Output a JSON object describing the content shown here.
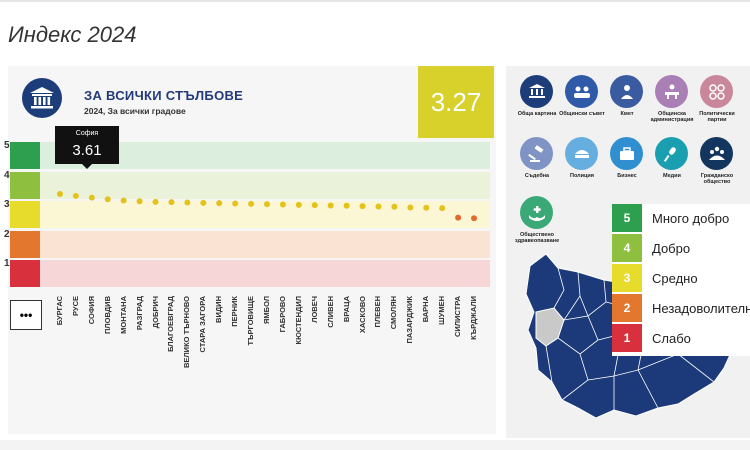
{
  "page": {
    "title": "Индекс 2024"
  },
  "pillar": {
    "title": "ЗА ВСИЧКИ СТЪЛБОВЕ",
    "subtitle": "2024, За всички градове",
    "score": "3.27",
    "icon": "institution-building-icon"
  },
  "tooltip": {
    "city": "София",
    "value": "3.61"
  },
  "more_button": {
    "label": "•••",
    "icon": "more-dots-icon"
  },
  "chart_data": {
    "type": "scatter",
    "title": "ЗА ВСИЧКИ СТЪЛБОВЕ",
    "subtitle": "2024, За всички градове",
    "categories": [
      "БУРГАС",
      "РУСЕ",
      "СОФИЯ",
      "ПЛОВДИВ",
      "МОНТАНА",
      "РАЗГРАД",
      "ДОБРИЧ",
      "БЛАГОЕВГРАД",
      "ВЕЛИКО ТЪРНОВО",
      "СТАРА ЗАГОРА",
      "ВИДИН",
      "ПЕРНИК",
      "ТЪРГОВИЩЕ",
      "ЯМБОЛ",
      "ГАБРОВО",
      "КЮСТЕНДИЛ",
      "ЛОВЕЧ",
      "СЛИВЕН",
      "ВРАЦА",
      "ХАСКОВО",
      "ПЛЕВЕН",
      "СМОЛЯН",
      "ПАЗАРДЖИК",
      "ВАРНА",
      "ШУМЕН",
      "СИЛИСТРА",
      "КЪРДЖАЛИ"
    ],
    "values": [
      3.72,
      3.66,
      3.61,
      3.56,
      3.52,
      3.5,
      3.48,
      3.47,
      3.46,
      3.45,
      3.44,
      3.43,
      3.42,
      3.41,
      3.4,
      3.39,
      3.38,
      3.37,
      3.36,
      3.35,
      3.34,
      3.33,
      3.31,
      3.3,
      3.29,
      3.0,
      2.98
    ],
    "point_colors": [
      "#e3c21b",
      "#e3c21b",
      "#e3c21b",
      "#e3c21b",
      "#e3c21b",
      "#e3c21b",
      "#e3c21b",
      "#e3c21b",
      "#e3c21b",
      "#e3c21b",
      "#e3c21b",
      "#e3c21b",
      "#e3c21b",
      "#e3c21b",
      "#e3c21b",
      "#e3c21b",
      "#e3c21b",
      "#e3c21b",
      "#e3c21b",
      "#e3c21b",
      "#e3c21b",
      "#e3c21b",
      "#e3c21b",
      "#e3c21b",
      "#e3c21b",
      "#e36a2e",
      "#e36a2e"
    ],
    "y_ticks": [
      "1",
      "2",
      "3",
      "4",
      "5"
    ],
    "ylim": [
      0.8,
      5.3
    ],
    "grid": false
  },
  "levels": [
    {
      "value": "5",
      "color": "#2e9e4f",
      "band": "#dcefdf"
    },
    {
      "value": "4",
      "color": "#8fbf3f",
      "band": "#eaf3d9"
    },
    {
      "value": "3",
      "color": "#e7dc2c",
      "band": "#fbf6d3"
    },
    {
      "value": "2",
      "color": "#e3772d",
      "band": "#fae3d3"
    },
    {
      "value": "1",
      "color": "#d8303c",
      "band": "#f7d6d8"
    }
  ],
  "pillars": [
    {
      "label": "Обща картина",
      "icon": "institution-building-icon",
      "color": "#1d3d7a"
    },
    {
      "label": "Общински съвет",
      "icon": "council-people-icon",
      "color": "#2f5aa8"
    },
    {
      "label": "Кмет",
      "icon": "mayor-person-icon",
      "color": "#3b5ba0"
    },
    {
      "label": "Общинска администрация",
      "icon": "administration-desk-icon",
      "color": "#a97fb5"
    },
    {
      "label": "Политически партии",
      "icon": "political-parties-icon",
      "color": "#c9879c"
    },
    {
      "label": "Съдебна",
      "icon": "gavel-icon",
      "color": "#7f93c4"
    },
    {
      "label": "Полиция",
      "icon": "police-cap-icon",
      "color": "#66aee0"
    },
    {
      "label": "Бизнес",
      "icon": "briefcase-icon",
      "color": "#2f8fd0"
    },
    {
      "label": "Медии",
      "icon": "microphone-icon",
      "color": "#1a9fb0"
    },
    {
      "label": "Гражданско общество",
      "icon": "civil-society-icon",
      "color": "#13365e"
    },
    {
      "label": "Обществено здравеопазване",
      "icon": "healthcare-hands-icon",
      "color": "#3ba877"
    }
  ],
  "legend": [
    {
      "value": "5",
      "label": "Много добро",
      "color": "#2e9e4f"
    },
    {
      "value": "4",
      "label": "Добро",
      "color": "#8fbf3f"
    },
    {
      "value": "3",
      "label": "Средно",
      "color": "#e7dc2c"
    },
    {
      "value": "2",
      "label": "Незадоволително",
      "color": "#e3772d"
    },
    {
      "value": "1",
      "label": "Слабо",
      "color": "#d8303c"
    }
  ],
  "map": {
    "fill": "#1c3a7a",
    "highlight": "#c9c9c9",
    "icon": "bulgaria-map"
  }
}
